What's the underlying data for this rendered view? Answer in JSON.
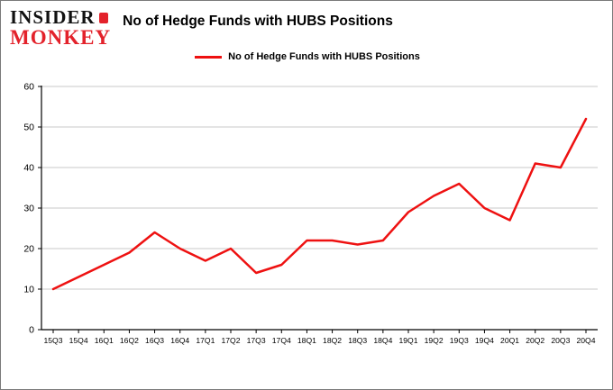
{
  "brand": {
    "line1": "INSIDER",
    "line2": "MONKEY",
    "accent_color": "#e3222b",
    "text_color": "#111111"
  },
  "header": {
    "title": "No of Hedge Funds with HUBS Positions"
  },
  "legend": {
    "label": "No of Hedge Funds with HUBS Positions",
    "line_color": "#ee1111"
  },
  "chart_data": {
    "type": "line",
    "title": "No of Hedge Funds with HUBS Positions",
    "categories": [
      "15Q3",
      "15Q4",
      "16Q1",
      "16Q2",
      "16Q3",
      "16Q4",
      "17Q1",
      "17Q2",
      "17Q3",
      "17Q4",
      "18Q1",
      "18Q2",
      "18Q3",
      "18Q4",
      "19Q1",
      "19Q2",
      "19Q3",
      "19Q4",
      "20Q1",
      "20Q2",
      "20Q3",
      "20Q4"
    ],
    "values": [
      10,
      13,
      16,
      19,
      24,
      20,
      17,
      20,
      14,
      16,
      22,
      22,
      21,
      22,
      29,
      33,
      36,
      30,
      27,
      41,
      40,
      52
    ],
    "xlabel": "",
    "ylabel": "",
    "ylim": [
      0,
      60
    ],
    "yticks": [
      0,
      10,
      20,
      30,
      40,
      50,
      60
    ],
    "grid": true,
    "grid_color": "#c9c9c9",
    "axis_color": "#000000",
    "line_color": "#ee1111",
    "legend_position": "top-center"
  }
}
